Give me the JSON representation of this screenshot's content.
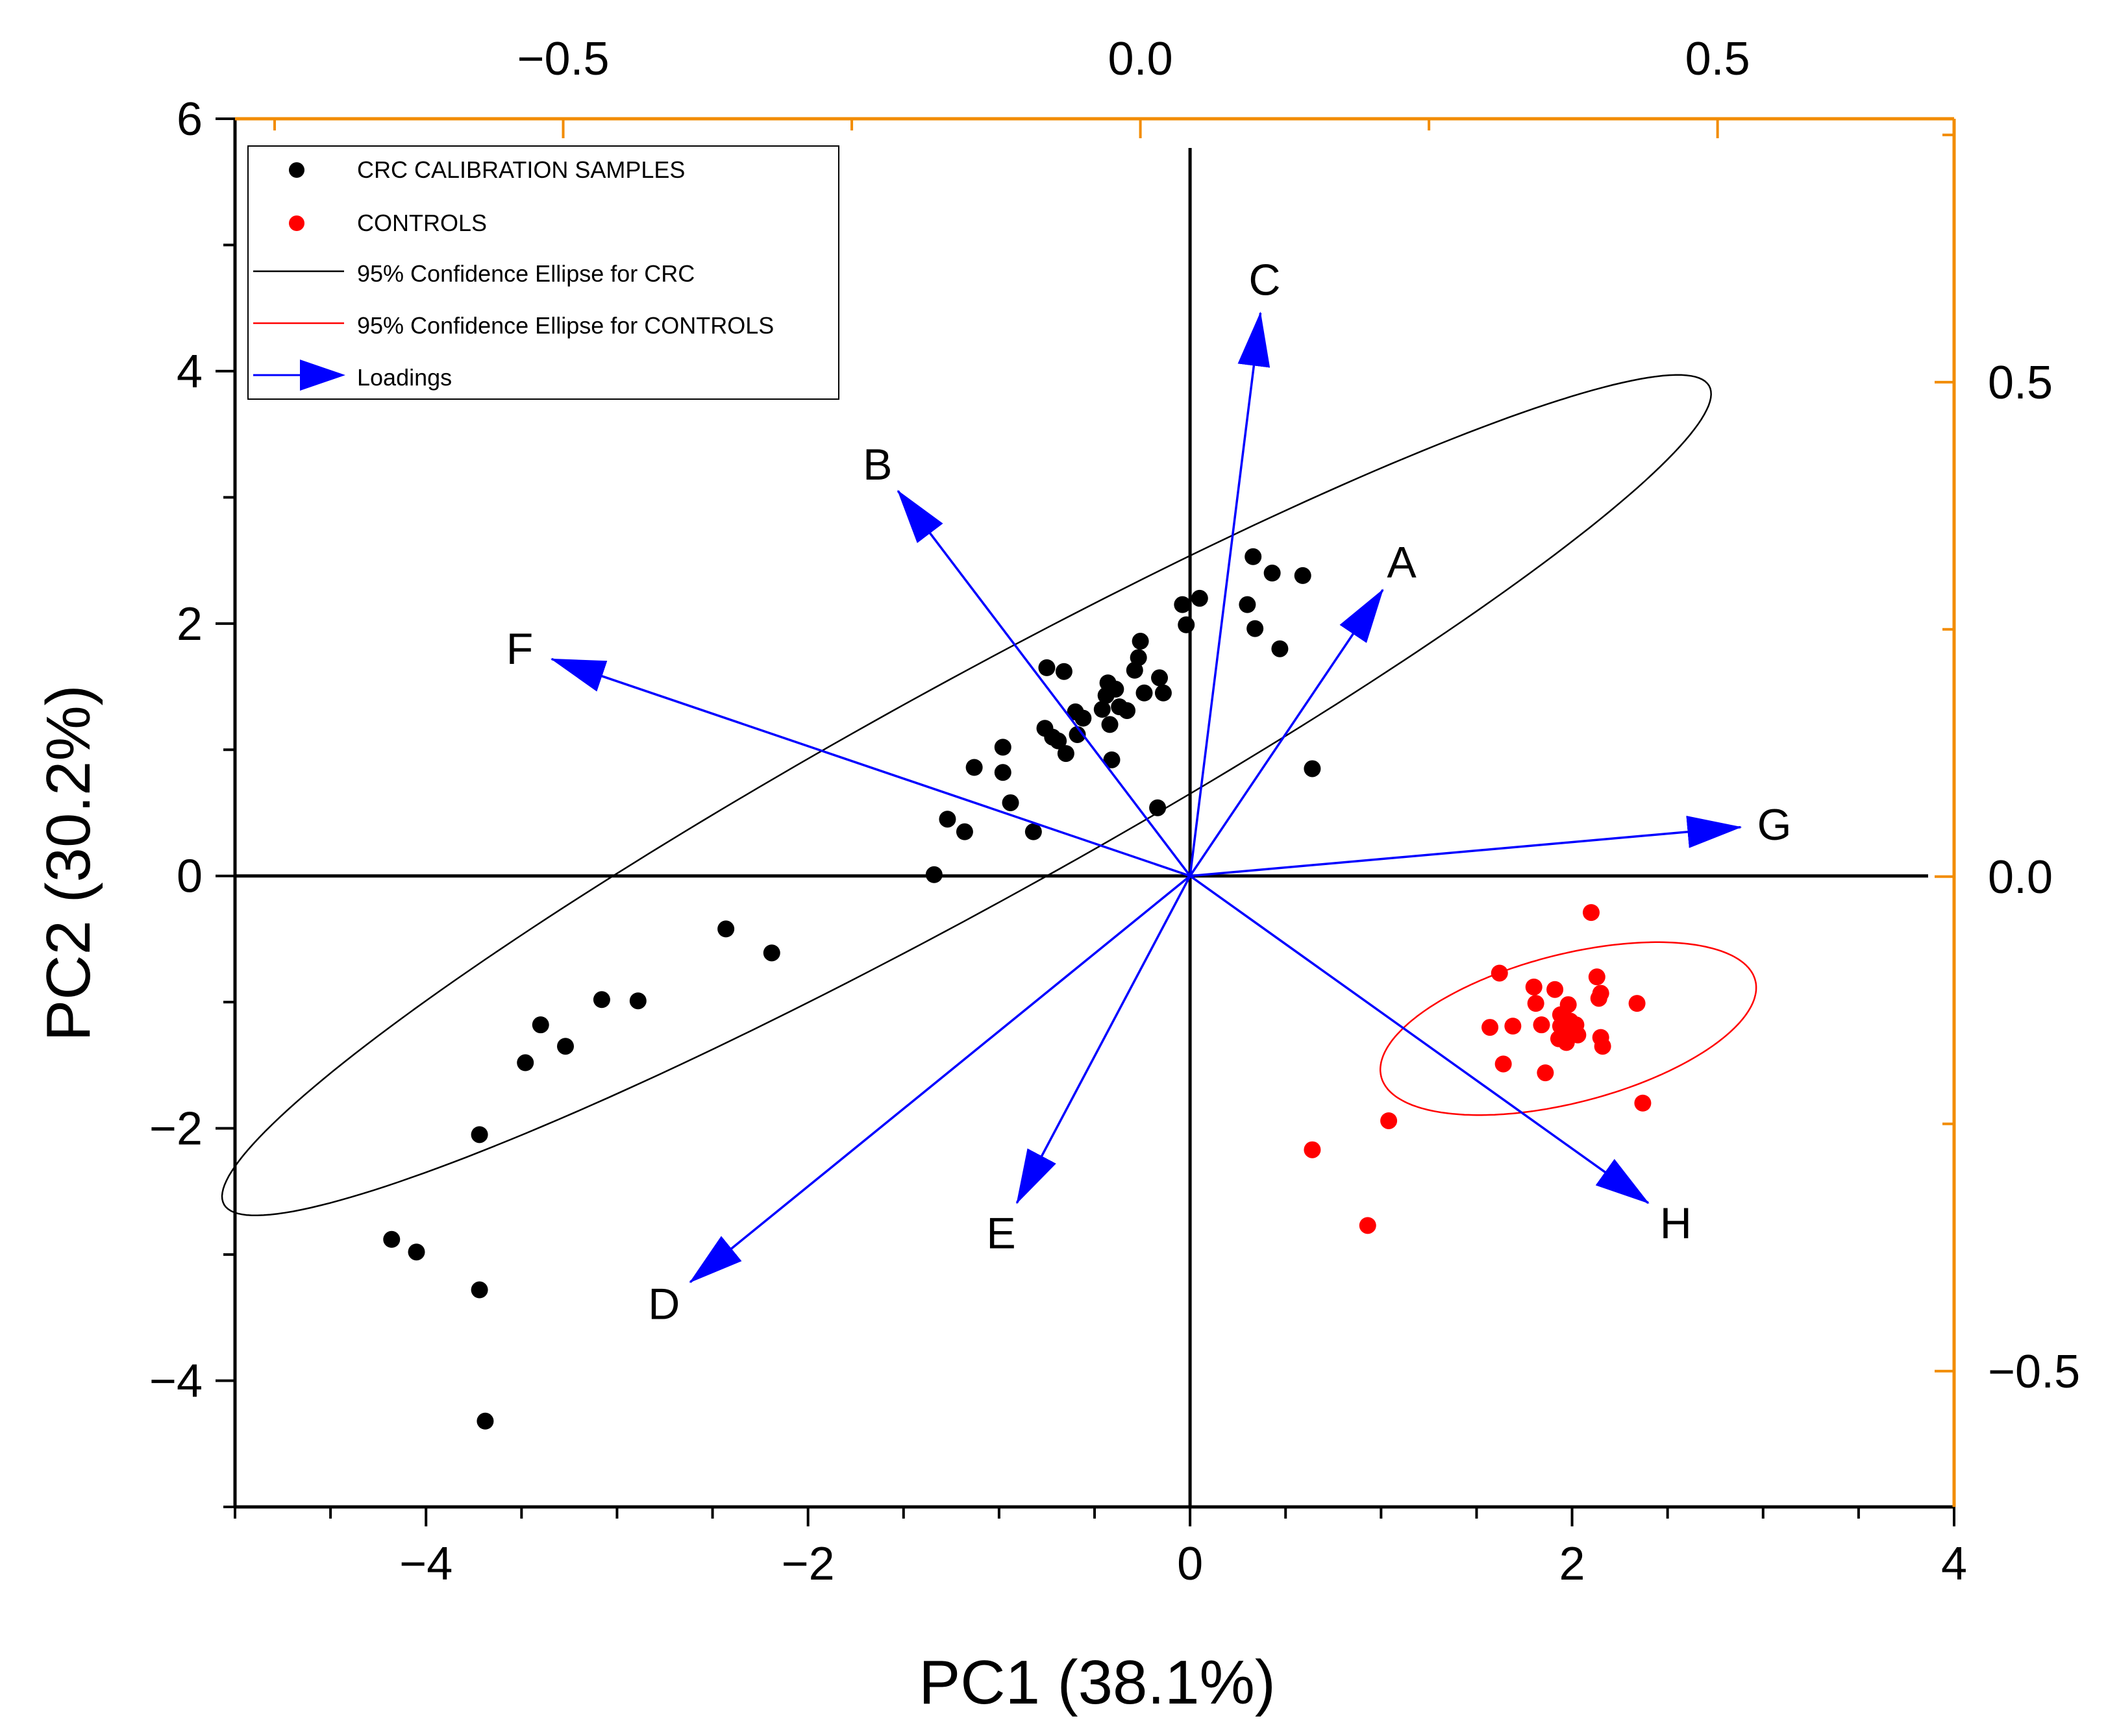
{
  "chart_data": {
    "type": "scatter",
    "title": "",
    "xlabel": "PC1 (38.1%)",
    "ylabel": "PC2 (30.2%)",
    "xlim": [
      -5,
      4
    ],
    "ylim": [
      -5,
      6
    ],
    "loading_xlim": [
      -0.7843,
      0.7049
    ],
    "loading_ylim": [
      -0.6373,
      0.7663
    ],
    "x_ticks": [
      {
        "value": -4,
        "label": "−4"
      },
      {
        "value": -2,
        "label": "−2"
      },
      {
        "value": 0,
        "label": "0"
      },
      {
        "value": 2,
        "label": "2"
      },
      {
        "value": 4,
        "label": "4"
      }
    ],
    "y_ticks": [
      {
        "value": -4,
        "label": "−4"
      },
      {
        "value": -2,
        "label": "−2"
      },
      {
        "value": 0,
        "label": "0"
      },
      {
        "value": 2,
        "label": "2"
      },
      {
        "value": 4,
        "label": "4"
      },
      {
        "value": 6,
        "label": "6"
      }
    ],
    "top_ticks": [
      {
        "value": -0.5,
        "label": "−0.5"
      },
      {
        "value": 0.0,
        "label": "0.0"
      },
      {
        "value": 0.5,
        "label": "0.5"
      }
    ],
    "right_ticks": [
      {
        "value": 0.5,
        "label": "0.5"
      },
      {
        "value": 0.0,
        "label": "0.0"
      },
      {
        "value": -0.5,
        "label": "−0.5"
      }
    ],
    "colors": {
      "crc": "#000000",
      "controls": "#ff0000",
      "loadings": "#0000ff",
      "secondary_axis": "#f28c00"
    },
    "legend": {
      "position": "top-left",
      "entries": [
        {
          "label": "CRC CALIBRATION SAMPLES",
          "kind": "dot",
          "color": "#000000"
        },
        {
          "label": "CONTROLS",
          "kind": "dot",
          "color": "#ff0000"
        },
        {
          "label": "95% Confidence Ellipse for CRC",
          "kind": "line",
          "color": "#000000"
        },
        {
          "label": "95% Confidence Ellipse for CONTROLS",
          "kind": "line",
          "color": "#ff0000"
        },
        {
          "label": "Loadings",
          "kind": "arrow",
          "color": "#0000ff"
        }
      ]
    },
    "series": [
      {
        "name": "CRC CALIBRATION SAMPLES",
        "color": "#000000",
        "points": [
          [
            -4.18,
            -2.88
          ],
          [
            -4.05,
            -2.98
          ],
          [
            -3.72,
            -2.05
          ],
          [
            -3.72,
            -3.28
          ],
          [
            -3.69,
            -4.32
          ],
          [
            -3.48,
            -1.48
          ],
          [
            -3.4,
            -1.18
          ],
          [
            -3.27,
            -1.35
          ],
          [
            -3.08,
            -0.98
          ],
          [
            -2.89,
            -0.99
          ],
          [
            -2.43,
            -0.42
          ],
          [
            -2.19,
            -0.61
          ],
          [
            -1.34,
            0.01
          ],
          [
            -1.27,
            0.45
          ],
          [
            -1.18,
            0.35
          ],
          [
            -1.13,
            0.86
          ],
          [
            -0.98,
            1.02
          ],
          [
            -0.98,
            0.82
          ],
          [
            -0.94,
            0.58
          ],
          [
            -0.82,
            0.35
          ],
          [
            -0.76,
            1.17
          ],
          [
            -0.75,
            1.65
          ],
          [
            -0.72,
            1.1
          ],
          [
            -0.69,
            1.07
          ],
          [
            -0.66,
            1.62
          ],
          [
            -0.65,
            0.97
          ],
          [
            -0.6,
            1.3
          ],
          [
            -0.59,
            1.12
          ],
          [
            -0.56,
            1.25
          ],
          [
            -0.46,
            1.32
          ],
          [
            -0.44,
            1.43
          ],
          [
            -0.43,
            1.53
          ],
          [
            -0.42,
            1.2
          ],
          [
            -0.41,
            0.92
          ],
          [
            -0.39,
            1.48
          ],
          [
            -0.37,
            1.34
          ],
          [
            -0.33,
            1.31
          ],
          [
            -0.29,
            1.63
          ],
          [
            -0.27,
            1.73
          ],
          [
            -0.26,
            1.86
          ],
          [
            -0.24,
            1.45
          ],
          [
            -0.17,
            0.54
          ],
          [
            -0.16,
            1.57
          ],
          [
            -0.14,
            1.45
          ],
          [
            -0.04,
            2.15
          ],
          [
            -0.02,
            1.99
          ],
          [
            0.05,
            2.2
          ],
          [
            0.3,
            2.15
          ],
          [
            0.33,
            2.53
          ],
          [
            0.34,
            1.96
          ],
          [
            0.43,
            2.4
          ],
          [
            0.47,
            1.8
          ],
          [
            0.59,
            2.38
          ],
          [
            0.64,
            0.85
          ]
        ]
      },
      {
        "name": "CONTROLS",
        "color": "#ff0000",
        "points": [
          [
            0.64,
            -2.17
          ],
          [
            0.93,
            -2.77
          ],
          [
            1.04,
            -1.94
          ],
          [
            1.57,
            -1.2
          ],
          [
            1.62,
            -0.77
          ],
          [
            1.64,
            -1.49
          ],
          [
            1.69,
            -1.19
          ],
          [
            1.8,
            -0.88
          ],
          [
            1.81,
            -1.01
          ],
          [
            1.84,
            -1.18
          ],
          [
            1.86,
            -1.56
          ],
          [
            1.91,
            -0.9
          ],
          [
            1.93,
            -1.29
          ],
          [
            1.94,
            -1.1
          ],
          [
            1.94,
            -1.19
          ],
          [
            1.96,
            -1.22
          ],
          [
            1.97,
            -1.32
          ],
          [
            1.98,
            -1.02
          ],
          [
            1.99,
            -1.15
          ],
          [
            2.02,
            -1.18
          ],
          [
            2.03,
            -1.26
          ],
          [
            2.1,
            -0.29
          ],
          [
            2.13,
            -0.8
          ],
          [
            2.14,
            -0.97
          ],
          [
            2.15,
            -0.93
          ],
          [
            2.15,
            -1.28
          ],
          [
            2.16,
            -1.35
          ],
          [
            2.34,
            -1.01
          ],
          [
            2.37,
            -1.8
          ]
        ]
      }
    ],
    "ellipses": [
      {
        "name": "95% Confidence Ellipse for CRC",
        "color": "#000000",
        "center": [
          -1.17,
          0.64
        ],
        "semi_major": 5.07,
        "semi_minor": 0.76,
        "angle_deg": 40.3
      },
      {
        "name": "95% Confidence Ellipse for CONTROLS",
        "color": "#ff0000",
        "center": [
          1.98,
          -1.21
        ],
        "semi_major": 1.06,
        "semi_minor": 0.56,
        "angle_deg": 26.0
      }
    ],
    "loadings": [
      {
        "name": "A",
        "x": 0.21,
        "y": 0.29
      },
      {
        "name": "B",
        "x": -0.21,
        "y": 0.39
      },
      {
        "name": "C",
        "x": 0.104,
        "y": 0.57
      },
      {
        "name": "D",
        "x": -0.39,
        "y": -0.41
      },
      {
        "name": "E",
        "x": -0.107,
        "y": -0.33
      },
      {
        "name": "F",
        "x": -0.51,
        "y": 0.22
      },
      {
        "name": "G",
        "x": 0.52,
        "y": 0.05
      },
      {
        "name": "H",
        "x": 0.44,
        "y": -0.33
      }
    ]
  }
}
